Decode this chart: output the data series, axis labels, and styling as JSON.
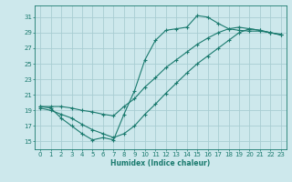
{
  "xlabel": "Humidex (Indice chaleur)",
  "bg_color": "#cde8ec",
  "grid_color": "#a8cdd2",
  "line_color": "#1a7a6e",
  "xlim": [
    -0.5,
    23.5
  ],
  "ylim": [
    14,
    32.5
  ],
  "yticks": [
    15,
    17,
    19,
    21,
    23,
    25,
    27,
    29,
    31
  ],
  "xticks": [
    0,
    1,
    2,
    3,
    4,
    5,
    6,
    7,
    8,
    9,
    10,
    11,
    12,
    13,
    14,
    15,
    16,
    17,
    18,
    19,
    20,
    21,
    22,
    23
  ],
  "line_zigzag_x": [
    0,
    1,
    2,
    3,
    4,
    5,
    6,
    7,
    8,
    9,
    10,
    11,
    12,
    13,
    14,
    15,
    16,
    17,
    18,
    19,
    20,
    21,
    22,
    23
  ],
  "line_zigzag_y": [
    19.5,
    19.3,
    18.0,
    17.0,
    16.0,
    15.2,
    15.5,
    15.2,
    18.5,
    21.5,
    25.5,
    28.0,
    29.3,
    29.5,
    29.7,
    31.2,
    31.0,
    30.2,
    29.5,
    29.3,
    29.2,
    29.2,
    29.0,
    28.8
  ],
  "line_upper_x": [
    0,
    1,
    2,
    3,
    4,
    5,
    6,
    7,
    8,
    9,
    10,
    11,
    12,
    13,
    14,
    15,
    16,
    17,
    18,
    19,
    20,
    21,
    22,
    23
  ],
  "line_upper_y": [
    19.5,
    19.5,
    19.5,
    19.3,
    19.0,
    18.8,
    18.5,
    18.3,
    19.5,
    20.5,
    22.0,
    23.2,
    24.5,
    25.5,
    26.5,
    27.5,
    28.3,
    29.0,
    29.5,
    29.7,
    29.5,
    29.3,
    29.0,
    28.7
  ],
  "line_lower_x": [
    0,
    1,
    2,
    3,
    4,
    5,
    6,
    7,
    8,
    9,
    10,
    11,
    12,
    13,
    14,
    15,
    16,
    17,
    18,
    19,
    20,
    21,
    22,
    23
  ],
  "line_lower_y": [
    19.3,
    19.0,
    18.5,
    18.0,
    17.2,
    16.5,
    16.0,
    15.5,
    16.0,
    17.0,
    18.5,
    19.8,
    21.2,
    22.5,
    23.8,
    25.0,
    26.0,
    27.0,
    28.0,
    29.0,
    29.5,
    29.3,
    29.0,
    28.7
  ]
}
